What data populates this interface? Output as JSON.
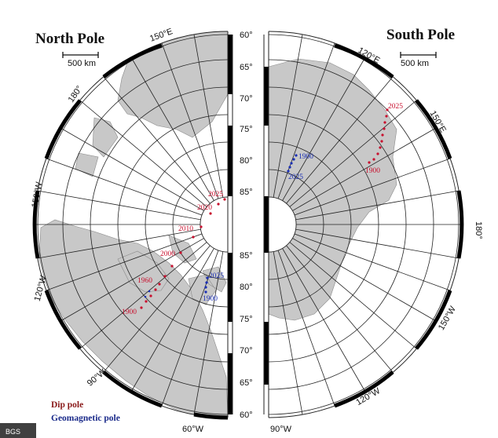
{
  "north": {
    "title": "North Pole",
    "scale_label": "500 km",
    "lon_labels": [
      "150°E",
      "180°",
      "150°W",
      "120°W",
      "90°W",
      "60°W"
    ],
    "lat_labels_top": [
      "60°",
      "65°",
      "70°",
      "75°",
      "80°",
      "85°"
    ],
    "lat_labels_bottom": [
      "85°",
      "80°",
      "75°",
      "70°",
      "65°",
      "60°"
    ],
    "dip_years": [
      "2025",
      "2020",
      "2010",
      "2000",
      "1960",
      "1900"
    ],
    "geo_years": [
      "2025",
      "1900"
    ]
  },
  "south": {
    "title": "South Pole",
    "scale_label": "500 km",
    "lon_labels": [
      "120°E",
      "150°E",
      "180°",
      "150°W",
      "120°W",
      "90°W"
    ],
    "dip_years": [
      "2025",
      "1900"
    ],
    "geo_years": [
      "1900",
      "2025"
    ]
  },
  "legend": {
    "dip": "Dip pole",
    "geomagnetic": "Geomagnetic pole"
  },
  "credit": "BGS",
  "colors": {
    "dip": "#c8102e",
    "geomagnetic": "#1a2fb5",
    "land": "#c8c8c8",
    "grid": "#222222"
  }
}
